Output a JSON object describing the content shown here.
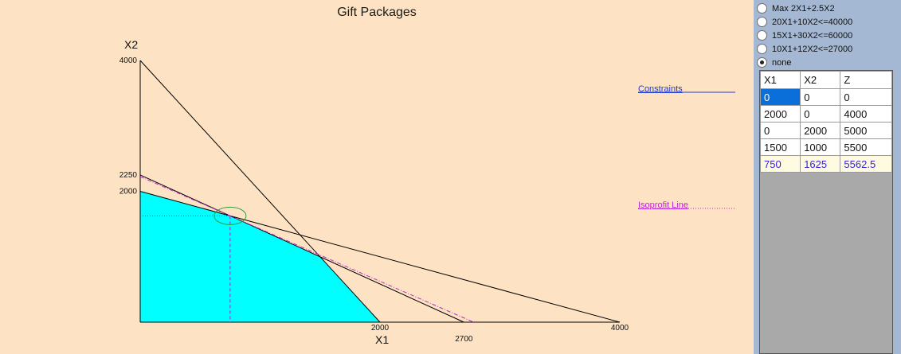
{
  "chart_title": "Gift Packages",
  "x_axis_name": "X1",
  "y_axis_name": "X2",
  "legend": {
    "constraints": "Constraints",
    "isoprofit": "Isoprofit Line"
  },
  "colors": {
    "feasible_region": "#00ffff",
    "constraint_line": "#000000",
    "isoprofit_line": "#c026d3",
    "legend_constraints": "#1e3ad0",
    "guide_lines": "#b020d0",
    "optimum_marker": "#2e9a3e",
    "selected_cell": "#0a6fd8",
    "highlight_text": "#3524d8"
  },
  "chart_data": {
    "type": "line",
    "title": "Gift Packages",
    "xlabel": "X1",
    "ylabel": "X2",
    "xlim": [
      0,
      4000
    ],
    "ylim": [
      0,
      4000
    ],
    "x_ticks": [
      "2000",
      "4000"
    ],
    "extra_x_tick": "2700",
    "y_ticks": [
      "4000",
      "2250",
      "2000"
    ],
    "constraints": [
      {
        "label": "20X1+10X2<=40000",
        "points": [
          [
            0,
            4000
          ],
          [
            2000,
            0
          ]
        ]
      },
      {
        "label": "15X1+30X2<=60000",
        "points": [
          [
            0,
            2000
          ],
          [
            4000,
            0
          ]
        ]
      },
      {
        "label": "10X1+12X2<=27000",
        "points": [
          [
            0,
            2250
          ],
          [
            2700,
            0
          ]
        ]
      }
    ],
    "feasible_region": [
      [
        0,
        0
      ],
      [
        0,
        2000
      ],
      [
        750,
        1625
      ],
      [
        1500,
        1000
      ],
      [
        2000,
        0
      ]
    ],
    "isoprofit_line": {
      "label": "Max 2X1+2.5X2",
      "z": 5562.5,
      "points": [
        [
          0,
          2225
        ],
        [
          2781.25,
          0
        ]
      ]
    },
    "optimum": {
      "x": 750,
      "y": 1625
    }
  },
  "radio_options": [
    {
      "label": "Max 2X1+2.5X2",
      "checked": false
    },
    {
      "label": "20X1+10X2<=40000",
      "checked": false
    },
    {
      "label": "15X1+30X2<=60000",
      "checked": false
    },
    {
      "label": "10X1+12X2<=27000",
      "checked": false
    },
    {
      "label": "none",
      "checked": true
    }
  ],
  "table": {
    "headers": [
      "X1",
      "X2",
      "Z"
    ],
    "rows": [
      [
        "0",
        "0",
        "0"
      ],
      [
        "2000",
        "0",
        "4000"
      ],
      [
        "0",
        "2000",
        "5000"
      ],
      [
        "1500",
        "1000",
        "5500"
      ],
      [
        "750",
        "1625",
        "5562.5"
      ]
    ],
    "selected_cell": [
      0,
      0
    ],
    "highlighted_row": 4
  }
}
